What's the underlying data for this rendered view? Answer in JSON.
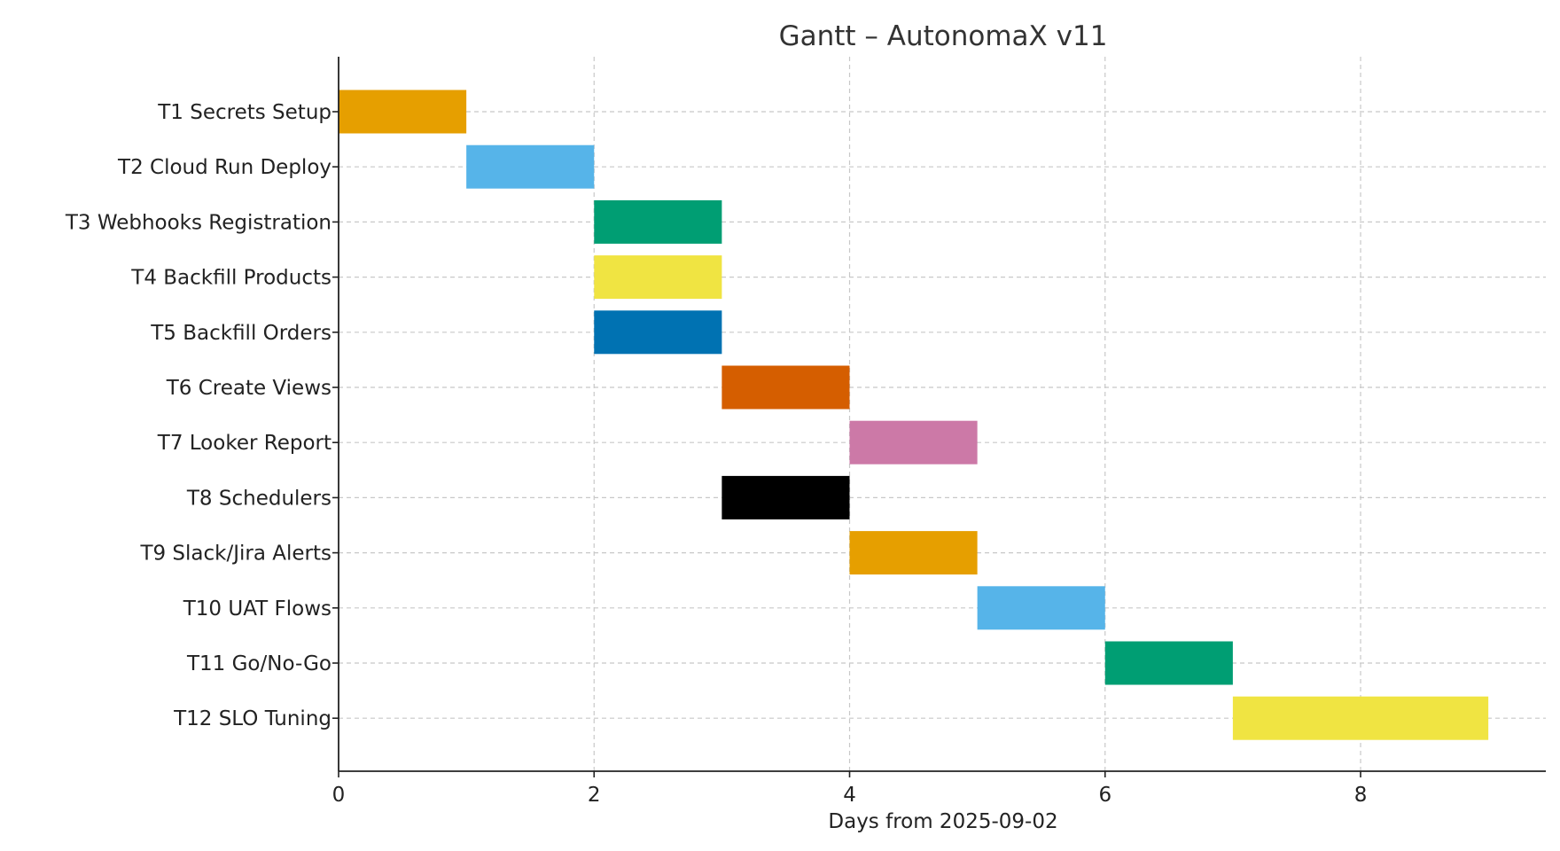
{
  "chart_data": {
    "type": "bar",
    "orientation": "horizontal-gantt",
    "title": "Gantt – AutonomaX v11",
    "xlabel": "Days from 2025-09-02",
    "ylabel": "",
    "xlim": [
      0,
      9.45
    ],
    "xticks": [
      0,
      2,
      4,
      6,
      8
    ],
    "grid": true,
    "categories": [
      "T1 Secrets Setup",
      "T2 Cloud Run Deploy",
      "T3 Webhooks Registration",
      "T4 Backfill Products",
      "T5 Backfill Orders",
      "T6 Create Views",
      "T7 Looker Report",
      "T8 Schedulers",
      "T9 Slack/Jira Alerts",
      "T10 UAT Flows",
      "T11 Go/No-Go",
      "T12 SLO Tuning"
    ],
    "tasks": [
      {
        "start": 0,
        "end": 1,
        "color": "#E69F00"
      },
      {
        "start": 1,
        "end": 2,
        "color": "#56B4E9"
      },
      {
        "start": 2,
        "end": 3,
        "color": "#009E73"
      },
      {
        "start": 2,
        "end": 3,
        "color": "#F0E442"
      },
      {
        "start": 2,
        "end": 3,
        "color": "#0072B2"
      },
      {
        "start": 3,
        "end": 4,
        "color": "#D55E00"
      },
      {
        "start": 4,
        "end": 5,
        "color": "#CC79A7"
      },
      {
        "start": 3,
        "end": 4,
        "color": "#000000"
      },
      {
        "start": 4,
        "end": 5,
        "color": "#E69F00"
      },
      {
        "start": 5,
        "end": 6,
        "color": "#56B4E9"
      },
      {
        "start": 6,
        "end": 7,
        "color": "#009E73"
      },
      {
        "start": 7,
        "end": 9,
        "color": "#F0E442"
      }
    ]
  }
}
